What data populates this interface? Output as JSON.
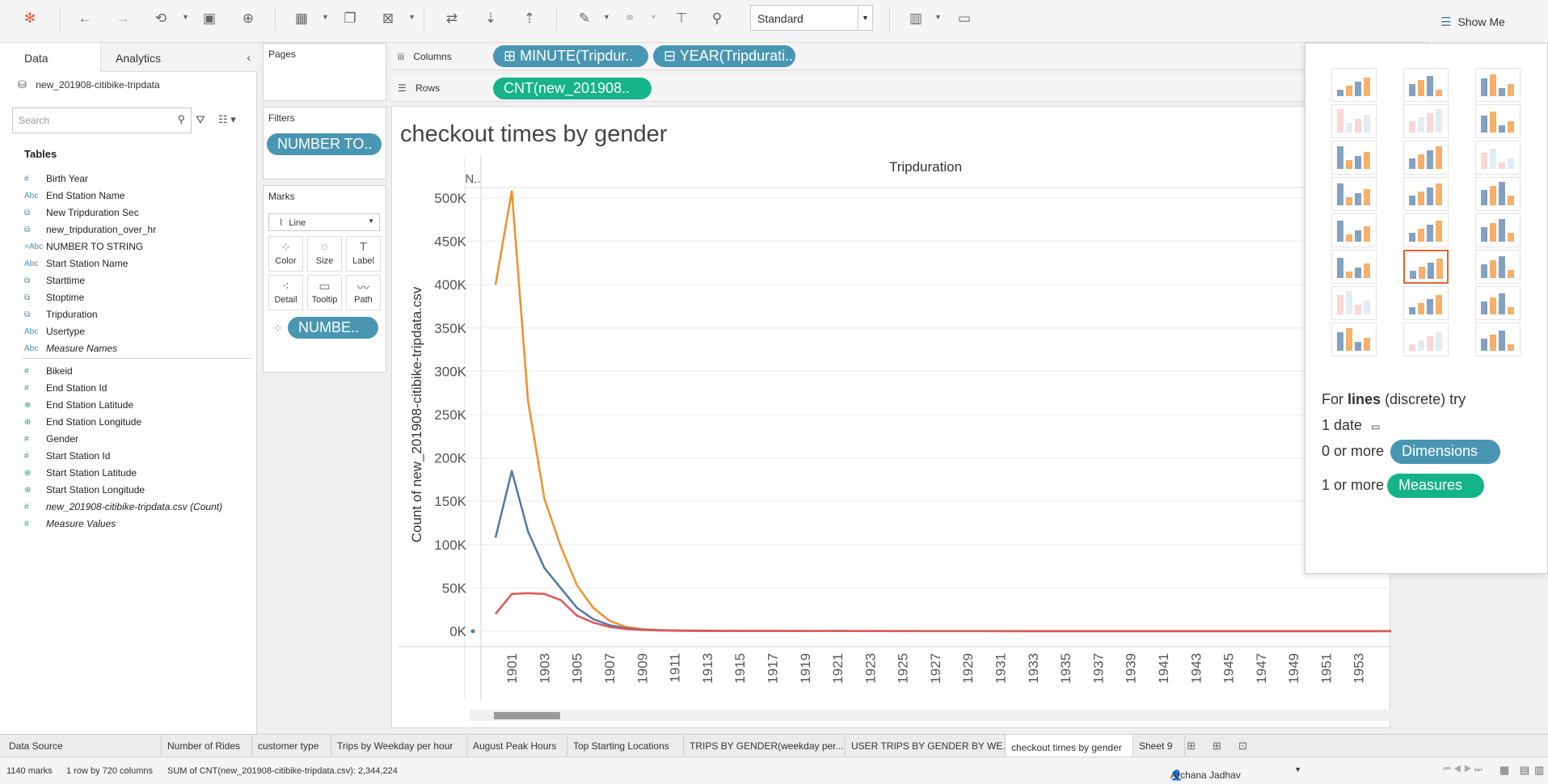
{
  "toolbar": {
    "fit_mode": "Standard",
    "show_me_label": "Show Me"
  },
  "left_pane": {
    "tab_data": "Data",
    "tab_analytics": "Analytics",
    "datasource": "new_201908-citibike-tripdata",
    "search_placeholder": "Search",
    "tables_header": "Tables",
    "dimensions": [
      {
        "type": "#",
        "name": "Birth Year",
        "kind": "dim"
      },
      {
        "type": "Abc",
        "name": "End Station Name",
        "kind": "dim"
      },
      {
        "type": "calc-date",
        "name": "New Tripduration Sec",
        "kind": "dim"
      },
      {
        "type": "calc-date",
        "name": "new_tripduration_over_hr",
        "kind": "dim"
      },
      {
        "type": "=Abc",
        "name": "NUMBER TO STRING",
        "kind": "dim"
      },
      {
        "type": "Abc",
        "name": "Start Station Name",
        "kind": "dim"
      },
      {
        "type": "calc-date",
        "name": "Starttime",
        "kind": "dim"
      },
      {
        "type": "calc-date",
        "name": "Stoptime",
        "kind": "dim"
      },
      {
        "type": "calc-date",
        "name": "Tripduration",
        "kind": "dim"
      },
      {
        "type": "Abc",
        "name": "Usertype",
        "kind": "dim"
      },
      {
        "type": "Abc",
        "name": "Measure Names",
        "kind": "dim",
        "italic": true
      }
    ],
    "measures": [
      {
        "type": "#",
        "name": "Bikeid",
        "kind": "meas"
      },
      {
        "type": "#",
        "name": "End Station Id",
        "kind": "meas"
      },
      {
        "type": "globe",
        "name": "End Station Latitude",
        "kind": "meas"
      },
      {
        "type": "globe",
        "name": "End Station Longitude",
        "kind": "meas"
      },
      {
        "type": "#",
        "name": "Gender",
        "kind": "meas"
      },
      {
        "type": "#",
        "name": "Start Station Id",
        "kind": "meas"
      },
      {
        "type": "globe",
        "name": "Start Station Latitude",
        "kind": "meas"
      },
      {
        "type": "globe",
        "name": "Start Station Longitude",
        "kind": "meas"
      },
      {
        "type": "#",
        "name": "new_201908-citibike-tripdata.csv (Count)",
        "kind": "meas",
        "italic": true
      },
      {
        "type": "#",
        "name": "Measure Values",
        "kind": "meas",
        "italic": true
      }
    ]
  },
  "cards": {
    "pages_title": "Pages",
    "filters_title": "Filters",
    "filter_pill": "NUMBER TO..",
    "marks_title": "Marks",
    "mark_type": "Line",
    "mark_buttons": [
      "Color",
      "Size",
      "Label",
      "Detail",
      "Tooltip",
      "Path"
    ],
    "marks_pill": "NUMBE.."
  },
  "shelves": {
    "columns_label": "Columns",
    "rows_label": "Rows",
    "column_pills": [
      "MINUTE(Tripdur..",
      "YEAR(Tripdurati.."
    ],
    "row_pills": [
      "CNT(new_201908.."
    ]
  },
  "chart_data": {
    "type": "line",
    "title": "checkout times by gender",
    "header": "Tripduration",
    "first_header": "N..",
    "ylabel": "Count of new_201908-citibike-tripdata.csv",
    "ylim": [
      0,
      500000
    ],
    "y_ticks": [
      "0K",
      "50K",
      "100K",
      "150K",
      "200K",
      "250K",
      "300K",
      "350K",
      "400K",
      "450K",
      "500K"
    ],
    "x_tick_labels": [
      "1901",
      "1903",
      "1905",
      "1907",
      "1909",
      "1911",
      "1913",
      "1915",
      "1917",
      "1919",
      "1921",
      "1923",
      "1925",
      "1927",
      "1929",
      "1931",
      "1933",
      "1935",
      "1937",
      "1939",
      "1941",
      "1943",
      "1945",
      "1947",
      "1949",
      "1951",
      "1953"
    ],
    "x": [
      1900,
      1901,
      1902,
      1903,
      1904,
      1905,
      1906,
      1907,
      1908,
      1909,
      1910,
      1911,
      1912,
      1915,
      1920,
      1930,
      1940,
      1950,
      1955
    ],
    "series": [
      {
        "color": "#f28e2b",
        "values": [
          400000,
          508000,
          265000,
          153000,
          98000,
          53000,
          27000,
          12000,
          5000,
          2500,
          1500,
          1000,
          800,
          500,
          300,
          200,
          100,
          100,
          100
        ]
      },
      {
        "color": "#4e79a7",
        "values": [
          108000,
          185000,
          115000,
          73000,
          50000,
          27000,
          14000,
          7000,
          3500,
          2000,
          1200,
          800,
          600,
          400,
          300,
          200,
          100,
          100,
          100
        ]
      },
      {
        "color": "#e15759",
        "values": [
          20000,
          43000,
          44000,
          43000,
          36000,
          18000,
          10000,
          5000,
          2500,
          1500,
          900,
          600,
          400,
          300,
          200,
          100,
          100,
          100,
          100
        ]
      }
    ],
    "null_point": {
      "value": 0,
      "color": "#4e79a7"
    }
  },
  "show_me": {
    "hint_prefix": "For",
    "hint_bold": "lines",
    "hint_suffix": "(discrete) try",
    "req1": "1 date",
    "req2_prefix": "0 or more",
    "req2_pill": "Dimensions",
    "req3_prefix": "1 or more",
    "req3_pill": "Measures"
  },
  "sheet_tabs": [
    "Data Source",
    "Number of Rides",
    "customer type",
    "Trips by Weekday  per hour",
    "August Peak Hours",
    "Top Starting Locations",
    "TRIPS BY GENDER(weekday per...",
    "USER TRIPS BY GENDER BY WE...",
    "checkout times by gender",
    "Sheet 9"
  ],
  "status": {
    "marks": "1140 marks",
    "dims": "1 row by 720 columns",
    "sum": "SUM of CNT(new_201908-citibike-tripdata.csv): 2,344,224",
    "user": "Archana  Jadhav"
  },
  "colors": {
    "dimension_pill": "#4996b2",
    "measure_pill": "#15b38a",
    "female": "#e15759",
    "male": "#4e79a7",
    "unknown": "#f28e2b"
  }
}
